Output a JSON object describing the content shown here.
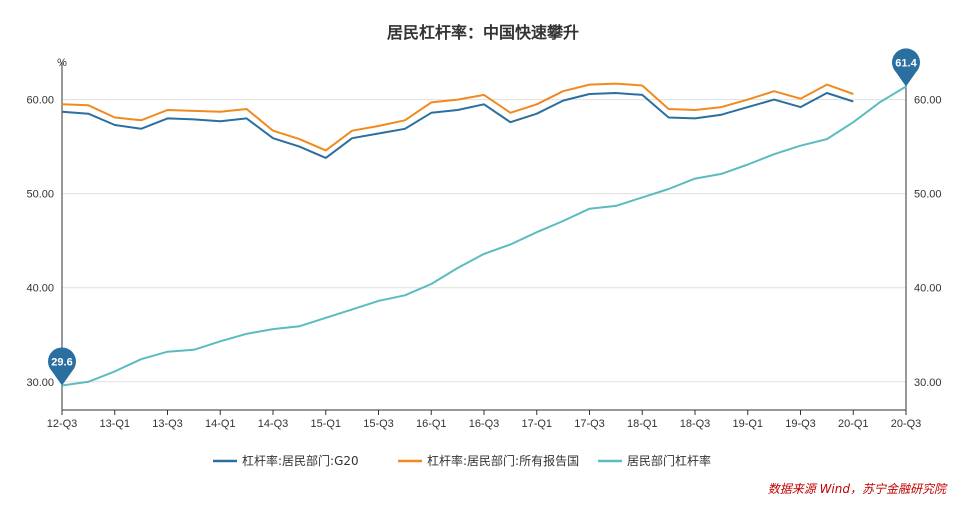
{
  "chart_data": {
    "type": "line",
    "title": "居民杠杆率：中国快速攀升",
    "unit_left": "%",
    "unit_right": "%",
    "ylim": [
      27,
      64
    ],
    "yticks": [
      30,
      40,
      50,
      60
    ],
    "ytick_labels": [
      "30.00",
      "40.00",
      "50.00",
      "60.00"
    ],
    "x": [
      "12-Q3",
      "12-Q4",
      "13-Q1",
      "13-Q2",
      "13-Q3",
      "13-Q4",
      "14-Q1",
      "14-Q2",
      "14-Q3",
      "14-Q4",
      "15-Q1",
      "15-Q2",
      "15-Q3",
      "15-Q4",
      "16-Q1",
      "16-Q2",
      "16-Q3",
      "16-Q4",
      "17-Q1",
      "17-Q2",
      "17-Q3",
      "17-Q4",
      "18-Q1",
      "18-Q2",
      "18-Q3",
      "18-Q4",
      "19-Q1",
      "19-Q2",
      "19-Q3",
      "19-Q4",
      "20-Q1",
      "20-Q2",
      "20-Q3"
    ],
    "xtick_labels": [
      "12-Q3",
      "13-Q1",
      "13-Q3",
      "14-Q1",
      "14-Q3",
      "15-Q1",
      "15-Q3",
      "16-Q1",
      "16-Q3",
      "17-Q1",
      "17-Q3",
      "18-Q1",
      "18-Q3",
      "19-Q1",
      "19-Q3",
      "20-Q1",
      "20-Q3"
    ],
    "series": [
      {
        "name": "杠杆率:居民部门:G20",
        "color": "#2a6fa0",
        "values": [
          58.7,
          58.5,
          57.3,
          56.9,
          58.0,
          57.9,
          57.7,
          58.0,
          55.9,
          55.0,
          53.8,
          55.9,
          56.4,
          56.9,
          58.6,
          58.9,
          59.5,
          57.6,
          58.5,
          59.9,
          60.6,
          60.7,
          60.5,
          58.1,
          58.0,
          58.4,
          59.2,
          60.0,
          59.2,
          60.7,
          59.8,
          null,
          null
        ]
      },
      {
        "name": "杠杆率:居民部门:所有报告国",
        "color": "#f08a1e",
        "values": [
          59.5,
          59.4,
          58.1,
          57.8,
          58.9,
          58.8,
          58.7,
          59.0,
          56.7,
          55.8,
          54.6,
          56.7,
          57.2,
          57.8,
          59.7,
          60.0,
          60.5,
          58.6,
          59.5,
          60.9,
          61.6,
          61.7,
          61.5,
          59.0,
          58.9,
          59.2,
          60.0,
          60.9,
          60.1,
          61.6,
          60.6,
          null,
          null
        ]
      },
      {
        "name": "居民部门杠杆率",
        "color": "#5bbcbf",
        "values": [
          29.6,
          30.0,
          31.1,
          32.4,
          33.2,
          33.4,
          34.3,
          35.1,
          35.6,
          35.9,
          36.8,
          37.7,
          38.6,
          39.2,
          40.4,
          42.1,
          43.6,
          44.6,
          45.9,
          47.1,
          48.4,
          48.7,
          49.6,
          50.5,
          51.6,
          52.1,
          53.1,
          54.2,
          55.1,
          55.8,
          57.6,
          59.7,
          61.4
        ]
      }
    ],
    "annotations": [
      {
        "label": "29.6",
        "x": "12-Q3",
        "series": "居民部门杠杆率",
        "value": 29.6
      },
      {
        "label": "61.4",
        "x": "20-Q3",
        "series": "居民部门杠杆率",
        "value": 61.4
      }
    ],
    "legend_position": "bottom-center",
    "grid": true
  },
  "source_note": "数据来源 Wind，苏宁金融研究院",
  "colors": {
    "axis": "#333333",
    "grid": "#e0e0e0",
    "pin": "#2a6fa0",
    "source": "#c00000"
  }
}
